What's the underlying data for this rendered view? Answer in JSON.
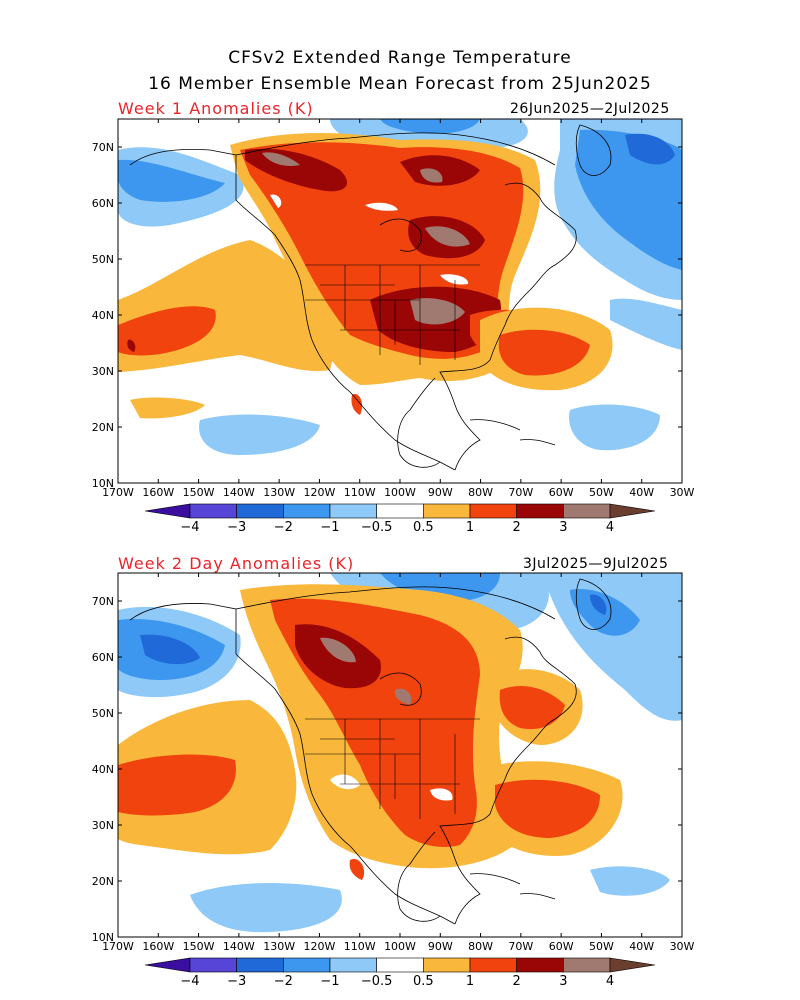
{
  "title_line1": "CFSv2 Extended Range Temperature",
  "title_line2": "16 Member Ensemble Mean Forecast from 25Jun2025",
  "panels": [
    {
      "label": "Week 1 Anomalies (K)",
      "dates": "26Jun2025—2Jul2025"
    },
    {
      "label": "Week 2 Day Anomalies (K)",
      "dates": "3Jul2025—9Jul2025"
    }
  ],
  "axes": {
    "lat_labels": [
      "70N",
      "60N",
      "50N",
      "40N",
      "30N",
      "20N",
      "10N"
    ],
    "lon_labels": [
      "170W",
      "160W",
      "150W",
      "140W",
      "130W",
      "120W",
      "110W",
      "100W",
      "90W",
      "80W",
      "70W",
      "60W",
      "50W",
      "40W",
      "30W"
    ]
  },
  "colorbar": {
    "labels": [
      "−4",
      "−3",
      "−2",
      "−1",
      "−0.5",
      "0.5",
      "1",
      "2",
      "3",
      "4"
    ],
    "colors": [
      "#3a0e9e",
      "#5645d6",
      "#1f6ad8",
      "#3d97ef",
      "#8ec9f7",
      "#ffffff",
      "#f9b83c",
      "#f0430e",
      "#9a0606",
      "#a07a70",
      "#6b3f30"
    ]
  }
}
